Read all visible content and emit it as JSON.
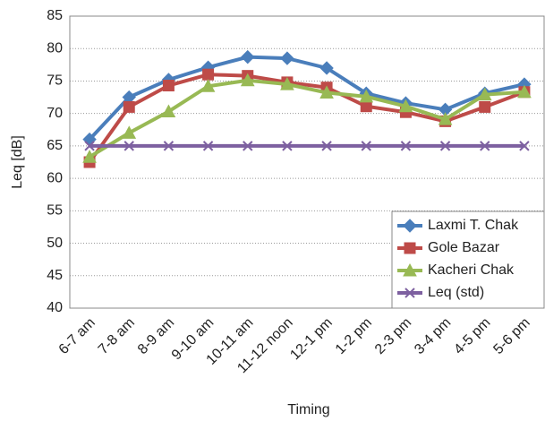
{
  "chart_data": {
    "type": "line",
    "xlabel": "Timing",
    "ylabel": "Leq [dB]",
    "categories": [
      "6-7 am",
      "7-8 am",
      "8-9 am",
      "9-10 am",
      "10-11 am",
      "11-12 noon",
      "12-1 pm",
      "1-2 pm",
      "2-3 pm",
      "3-4 pm",
      "4-5 pm",
      "5-6 pm"
    ],
    "series": [
      {
        "name": "Laxmi T. Chak",
        "color": "#4a7ebb",
        "marker": "diamond",
        "values": [
          66,
          72.5,
          75.2,
          77.1,
          78.7,
          78.5,
          77,
          73.1,
          71.6,
          70.6,
          73.1,
          74.5
        ]
      },
      {
        "name": "Gole Bazar",
        "color": "#be4b48",
        "marker": "square",
        "values": [
          62.5,
          71,
          74.3,
          76,
          75.8,
          74.8,
          74,
          71.1,
          70.2,
          68.8,
          71,
          73.3
        ]
      },
      {
        "name": "Kacheri Chak",
        "color": "#98b954",
        "marker": "triangle",
        "values": [
          63.3,
          67,
          70.3,
          74.2,
          75.1,
          74.5,
          73.2,
          72.6,
          71.1,
          69.1,
          72.9,
          73.3
        ]
      },
      {
        "name": "Leq (std)",
        "color": "#7d60a0",
        "marker": "x",
        "values": [
          65,
          65,
          65,
          65,
          65,
          65,
          65,
          65,
          65,
          65,
          65,
          65
        ]
      }
    ],
    "ylim": [
      40,
      85
    ],
    "yticks": [
      40,
      45,
      50,
      55,
      60,
      65,
      70,
      75,
      80,
      85
    ],
    "grid": true,
    "legend": "lower right"
  }
}
